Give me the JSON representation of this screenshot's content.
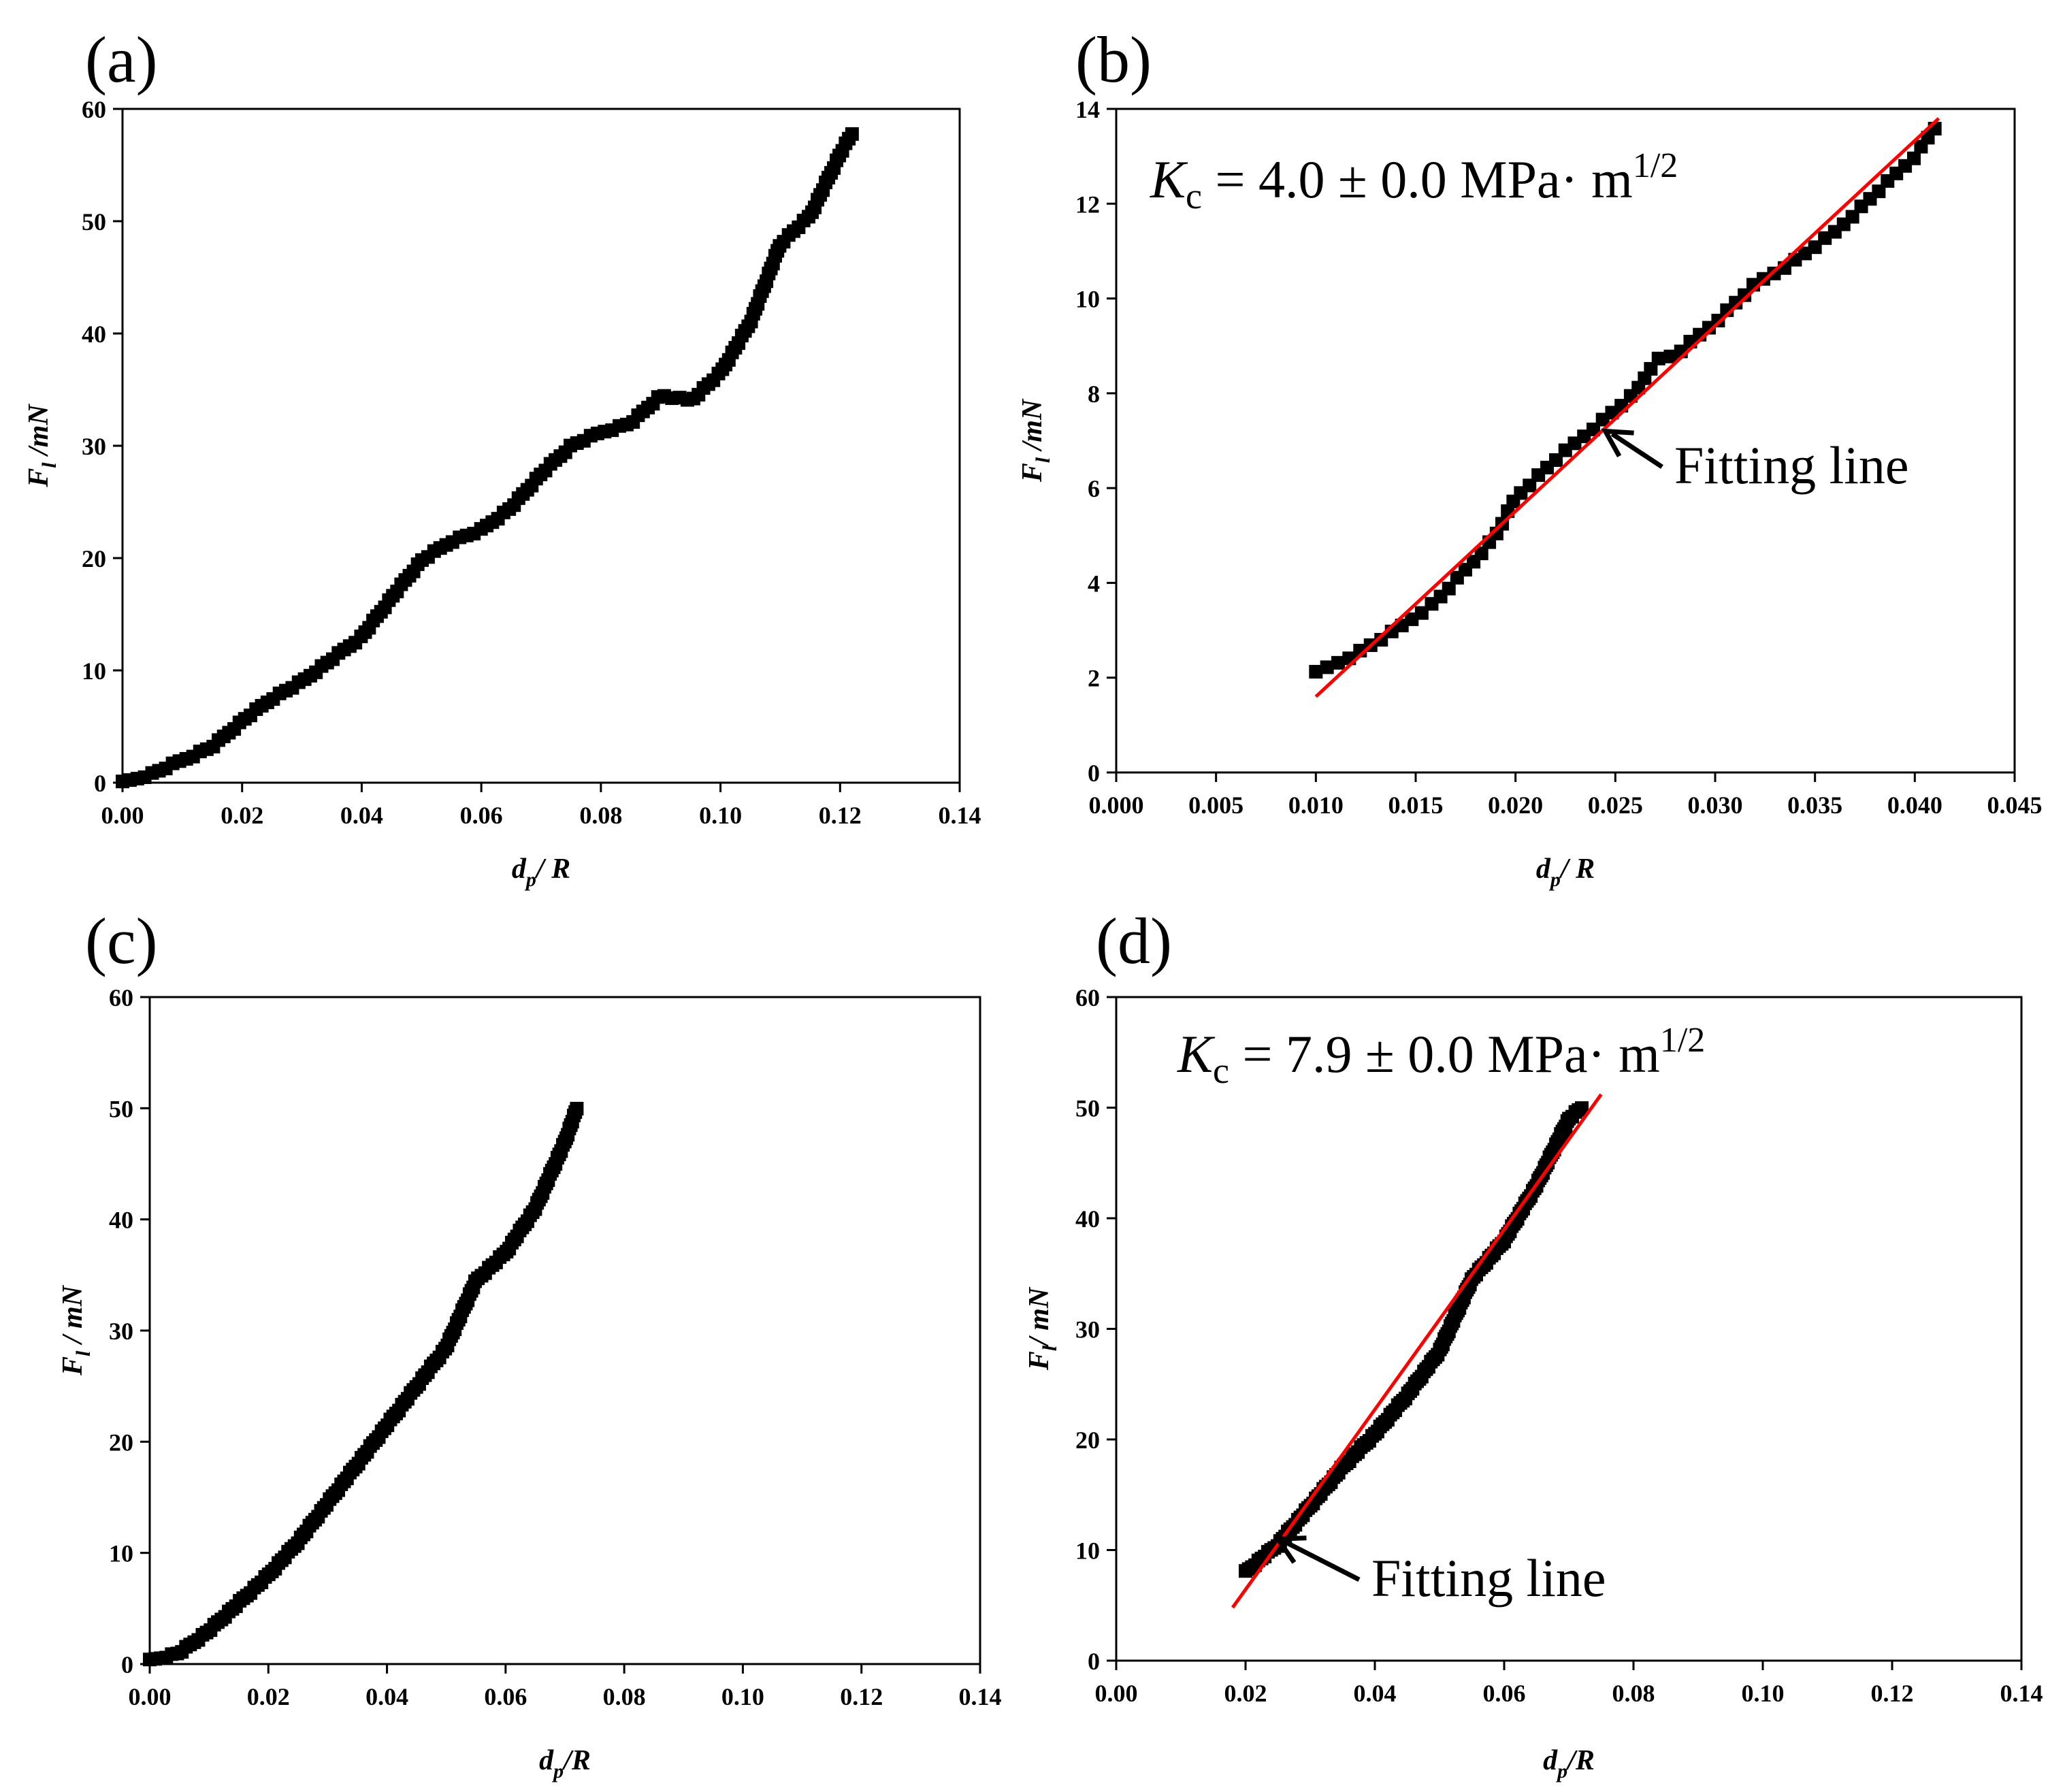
{
  "figure": {
    "description_visible": false
  },
  "colors": {
    "marker": "#000000",
    "fit_line": "#ff0000",
    "axes": "#000000"
  },
  "chart_data": [
    {
      "id": "a",
      "panel_label": "(a)",
      "type": "scatter",
      "xlabel_main": "d",
      "xlabel_sub": "p",
      "xlabel_rest": "/ R",
      "ylabel_main": "F",
      "ylabel_sub": "l",
      "ylabel_rest": " /mN",
      "xlim": [
        0,
        0.14
      ],
      "ylim": [
        0,
        60
      ],
      "xticks": [
        0,
        0.02,
        0.04,
        0.06,
        0.08,
        0.1,
        0.12,
        0.14
      ],
      "xtick_labels": [
        "0.00",
        "0.02",
        "0.04",
        "0.06",
        "0.08",
        "0.10",
        "0.12",
        "0.14"
      ],
      "yticks": [
        0,
        10,
        20,
        30,
        40,
        50,
        60
      ],
      "ytick_labels": [
        "0",
        "10",
        "20",
        "30",
        "40",
        "50",
        "60"
      ],
      "curve": [
        [
          0.0,
          0.0
        ],
        [
          0.005,
          0.8
        ],
        [
          0.01,
          2.0
        ],
        [
          0.015,
          3.2
        ],
        [
          0.02,
          5.5
        ],
        [
          0.025,
          7.5
        ],
        [
          0.03,
          9.0
        ],
        [
          0.035,
          11.0
        ],
        [
          0.04,
          13.0
        ],
        [
          0.045,
          16.5
        ],
        [
          0.05,
          19.8
        ],
        [
          0.055,
          21.5
        ],
        [
          0.06,
          22.5
        ],
        [
          0.065,
          24.5
        ],
        [
          0.07,
          27.5
        ],
        [
          0.075,
          30.0
        ],
        [
          0.08,
          31.2
        ],
        [
          0.085,
          32.0
        ],
        [
          0.09,
          34.5
        ],
        [
          0.095,
          34.0
        ],
        [
          0.1,
          36.5
        ],
        [
          0.105,
          41.0
        ],
        [
          0.11,
          48.0
        ],
        [
          0.115,
          50.5
        ],
        [
          0.12,
          56.0
        ],
        [
          0.122,
          57.8
        ]
      ],
      "fit": null
    },
    {
      "id": "b",
      "panel_label": "(b)",
      "type": "scatter",
      "xlabel_main": "d",
      "xlabel_sub": "p",
      "xlabel_rest": "/ R",
      "ylabel_main": "F",
      "ylabel_sub": "l",
      "ylabel_rest": " /mN",
      "xlim": [
        0,
        0.045
      ],
      "ylim": [
        0,
        14
      ],
      "xticks": [
        0,
        0.005,
        0.01,
        0.015,
        0.02,
        0.025,
        0.03,
        0.035,
        0.04,
        0.045
      ],
      "xtick_labels": [
        "0.000",
        "0.005",
        "0.010",
        "0.015",
        "0.020",
        "0.025",
        "0.030",
        "0.035",
        "0.040",
        "0.045"
      ],
      "yticks": [
        0,
        2,
        4,
        6,
        8,
        10,
        12,
        14
      ],
      "ytick_labels": [
        "0",
        "2",
        "4",
        "6",
        "8",
        "10",
        "12",
        "14"
      ],
      "curve": [
        [
          0.01,
          2.1
        ],
        [
          0.012,
          2.5
        ],
        [
          0.014,
          3.0
        ],
        [
          0.016,
          3.6
        ],
        [
          0.018,
          4.5
        ],
        [
          0.019,
          5.0
        ],
        [
          0.02,
          5.8
        ],
        [
          0.022,
          6.6
        ],
        [
          0.024,
          7.3
        ],
        [
          0.026,
          8.0
        ],
        [
          0.027,
          8.7
        ],
        [
          0.028,
          8.8
        ],
        [
          0.03,
          9.5
        ],
        [
          0.032,
          10.3
        ],
        [
          0.034,
          10.8
        ],
        [
          0.036,
          11.4
        ],
        [
          0.038,
          12.2
        ],
        [
          0.04,
          13.0
        ],
        [
          0.041,
          13.6
        ]
      ],
      "fit": {
        "x1": 0.01,
        "y1": 1.6,
        "x2": 0.0412,
        "y2": 13.8
      },
      "kc_label": "K",
      "kc_sub": "c",
      "kc_value": " = 4.0 ± 0.0 MPa· m",
      "kc_sup": "1/2",
      "fit_label": "Fitting line",
      "fit_arrow": {
        "tip_x": 0.0245,
        "tip_y": 7.2,
        "label_x": 0.0263,
        "label_y": 6.5
      }
    },
    {
      "id": "c",
      "panel_label": "(c)",
      "type": "scatter",
      "xlabel_main": "d",
      "xlabel_sub": "p",
      "xlabel_rest": "/R",
      "ylabel_main": "F",
      "ylabel_sub": "l",
      "ylabel_rest": " / mN",
      "xlim": [
        0,
        0.14
      ],
      "ylim": [
        0,
        60
      ],
      "xticks": [
        0,
        0.02,
        0.04,
        0.06,
        0.08,
        0.1,
        0.12,
        0.14
      ],
      "xtick_labels": [
        "0.00",
        "0.02",
        "0.04",
        "0.06",
        "0.08",
        "0.10",
        "0.12",
        "0.14"
      ],
      "yticks": [
        0,
        10,
        20,
        30,
        40,
        50,
        60
      ],
      "ytick_labels": [
        "0",
        "10",
        "20",
        "30",
        "40",
        "50",
        "60"
      ],
      "curve": [
        [
          0.0,
          0.3
        ],
        [
          0.005,
          1.0
        ],
        [
          0.01,
          3.0
        ],
        [
          0.015,
          5.5
        ],
        [
          0.02,
          8.0
        ],
        [
          0.025,
          11.0
        ],
        [
          0.03,
          14.5
        ],
        [
          0.035,
          18.0
        ],
        [
          0.04,
          21.5
        ],
        [
          0.045,
          25.0
        ],
        [
          0.05,
          28.5
        ],
        [
          0.055,
          34.5
        ],
        [
          0.06,
          37.0
        ],
        [
          0.065,
          41.0
        ],
        [
          0.07,
          47.0
        ],
        [
          0.072,
          50.0
        ]
      ],
      "fit": null
    },
    {
      "id": "d",
      "panel_label": "(d)",
      "type": "scatter",
      "xlabel_main": "d",
      "xlabel_sub": "p",
      "xlabel_rest": "/R",
      "ylabel_main": "F",
      "ylabel_sub": "l",
      "ylabel_rest": "/ mN",
      "xlim": [
        0,
        0.14
      ],
      "ylim": [
        0,
        60
      ],
      "xticks": [
        0,
        0.02,
        0.04,
        0.06,
        0.08,
        0.1,
        0.12,
        0.14
      ],
      "xtick_labels": [
        "0.00",
        "0.02",
        "0.04",
        "0.06",
        "0.08",
        "0.10",
        "0.12",
        "0.14"
      ],
      "yticks": [
        0,
        10,
        20,
        30,
        40,
        50,
        60
      ],
      "ytick_labels": [
        "0",
        "10",
        "20",
        "30",
        "40",
        "50",
        "60"
      ],
      "curve": [
        [
          0.02,
          8.0
        ],
        [
          0.025,
          10.5
        ],
        [
          0.03,
          14.0
        ],
        [
          0.035,
          17.5
        ],
        [
          0.04,
          20.5
        ],
        [
          0.045,
          24.0
        ],
        [
          0.05,
          28.0
        ],
        [
          0.055,
          34.5
        ],
        [
          0.06,
          38.0
        ],
        [
          0.065,
          43.0
        ],
        [
          0.07,
          49.0
        ],
        [
          0.072,
          50.0
        ]
      ],
      "fit": {
        "x1": 0.018,
        "y1": 4.8,
        "x2": 0.075,
        "y2": 51.2
      },
      "kc_label": "K",
      "kc_sub": "c",
      "kc_value": " = 7.9 ± 0.0 MPa· m",
      "kc_sup": "1/2",
      "fit_label": "Fitting line",
      "fit_arrow": {
        "tip_x": 0.025,
        "tip_y": 11.0,
        "label_x": 0.036,
        "label_y": 6.5
      }
    }
  ]
}
